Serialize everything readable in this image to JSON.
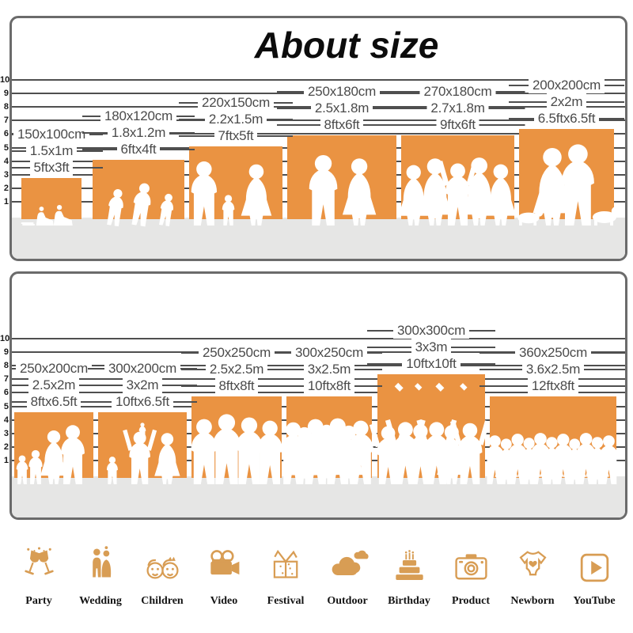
{
  "title": "About size",
  "colors": {
    "block_orange": "#ea9342",
    "floor_gray": "#e6e6e5",
    "line_gray": "#4f4f4f",
    "icon_tan": "#d89d54",
    "border_gray": "#6b6b6b"
  },
  "panels": [
    {
      "y_axis": [
        "10",
        "9",
        "8",
        "7",
        "6",
        "5",
        "4",
        "3",
        "2",
        "1"
      ],
      "sizes": [
        {
          "cm": "150x100cm",
          "m": "1.5x1m",
          "ft": "5ftx3ft",
          "scene": "children-reading"
        },
        {
          "cm": "180x120cm",
          "m": "1.8x1.2m",
          "ft": "6ftx4ft",
          "scene": "children-running"
        },
        {
          "cm": "220x150cm",
          "m": "2.2x1.5m",
          "ft": "7ftx5ft",
          "scene": "family-walking"
        },
        {
          "cm": "250x180cm",
          "m": "2.5x1.8m",
          "ft": "8ftx6ft",
          "scene": "wedding-couple"
        },
        {
          "cm": "270x180cm",
          "m": "2.7x1.8m",
          "ft": "9ftx6ft",
          "scene": "party-dancers"
        },
        {
          "cm": "200x200cm",
          "m": "2x2m",
          "ft": "6.5ftx6.5ft",
          "scene": "couple-with-dogs"
        }
      ]
    },
    {
      "y_axis": [
        "10",
        "9",
        "8",
        "7",
        "6",
        "5",
        "4",
        "3",
        "2",
        "1"
      ],
      "sizes": [
        {
          "cm": "250x200cm",
          "m": "2.5x2m",
          "ft": "8ftx6.5ft",
          "scene": "family-group"
        },
        {
          "cm": "300x200cm",
          "m": "3x2m",
          "ft": "10ftx6.5ft",
          "scene": "family-lifting-child"
        },
        {
          "cm": "250x250cm",
          "m": "2.5x2.5m",
          "ft": "8ftx8ft",
          "scene": "standing-group"
        },
        {
          "cm": "300x250cm",
          "m": "3x2.5m",
          "ft": "10ftx8ft",
          "scene": "crowd-medium"
        },
        {
          "cm": "300x300cm",
          "m": "3x3m",
          "ft": "10ftx10ft",
          "scene": "graduation-crowd"
        },
        {
          "cm": "360x250cm",
          "m": "3.6x2.5m",
          "ft": "12ftx8ft",
          "scene": "crowd-large"
        }
      ]
    }
  ],
  "categories": [
    {
      "label": "Party",
      "icon": "party-icon"
    },
    {
      "label": "Wedding",
      "icon": "wedding-icon"
    },
    {
      "label": "Children",
      "icon": "children-icon"
    },
    {
      "label": "Video",
      "icon": "video-icon"
    },
    {
      "label": "Festival",
      "icon": "festival-icon"
    },
    {
      "label": "Outdoor",
      "icon": "outdoor-icon"
    },
    {
      "label": "Birthday",
      "icon": "birthday-icon"
    },
    {
      "label": "Product",
      "icon": "product-icon"
    },
    {
      "label": "Newborn",
      "icon": "newborn-icon"
    },
    {
      "label": "YouTube",
      "icon": "youtube-icon"
    }
  ]
}
